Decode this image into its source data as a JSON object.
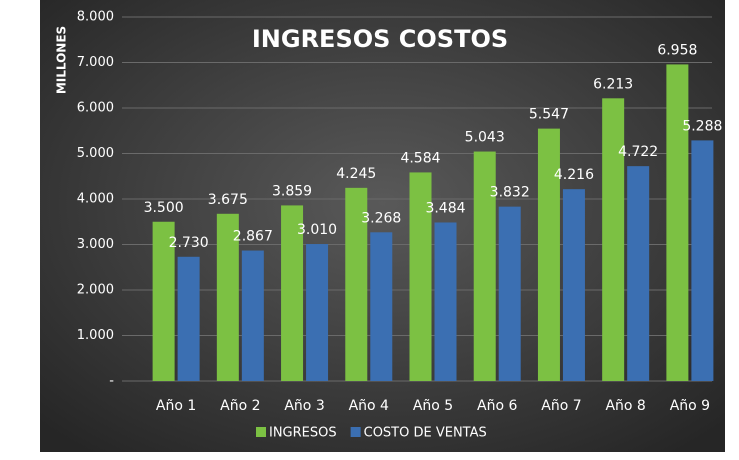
{
  "chart_data": {
    "type": "bar",
    "title": "INGRESOS COSTOS",
    "y_label": "MILLONES",
    "categories": [
      "Año 1",
      "Año 2",
      "Año 3",
      "Año 4",
      "Año 5",
      "Año 6",
      "Año 7",
      "Año 8",
      "Año 9"
    ],
    "series": [
      {
        "name": "INGRESOS",
        "color": "#7cc143",
        "values": [
          3500,
          3675,
          3859,
          4245,
          4584,
          5043,
          5547,
          6213,
          6958
        ],
        "value_labels": [
          "3.500",
          "3.675",
          "3.859",
          "4.245",
          "4.584",
          "5.043",
          "5.547",
          "6.213",
          "6.958"
        ]
      },
      {
        "name": "COSTO DE VENTAS",
        "color": "#3b6fb2",
        "values": [
          2730,
          2867,
          3010,
          3268,
          3484,
          3832,
          4216,
          4722,
          5288
        ],
        "value_labels": [
          "2.730",
          "2.867",
          "3.010",
          "3.268",
          "3.484",
          "3.832",
          "4.216",
          "4.722",
          "5.288"
        ]
      }
    ],
    "ylim": [
      0,
      8000
    ],
    "yticks": [
      {
        "value": 0,
        "label": "-"
      },
      {
        "value": 1000,
        "label": "1.000"
      },
      {
        "value": 2000,
        "label": "2.000"
      },
      {
        "value": 3000,
        "label": "3.000"
      },
      {
        "value": 4000,
        "label": "4.000"
      },
      {
        "value": 5000,
        "label": "5.000"
      },
      {
        "value": 6000,
        "label": "6.000"
      },
      {
        "value": 7000,
        "label": "7.000"
      },
      {
        "value": 8000,
        "label": "8.000"
      }
    ],
    "grid": true,
    "legend": "bottom"
  }
}
